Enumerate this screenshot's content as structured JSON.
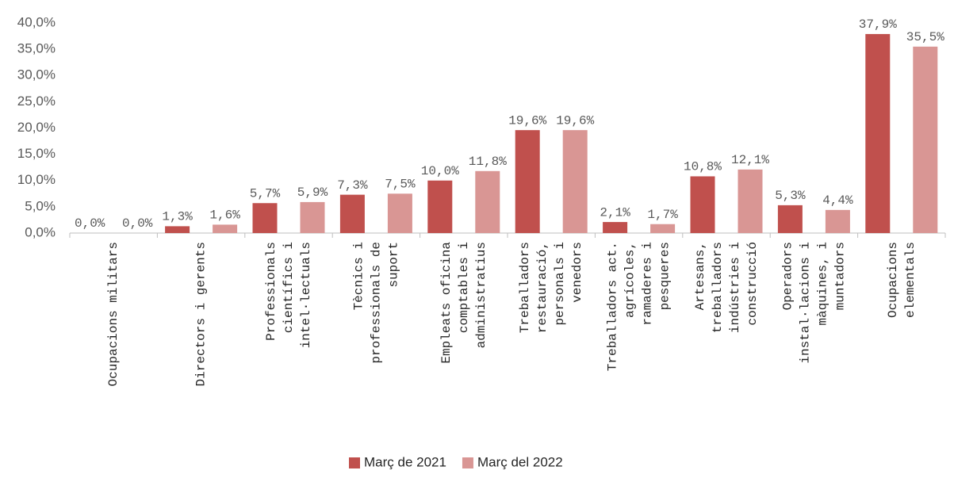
{
  "chart_data": {
    "type": "bar",
    "categories": [
      "Ocupacions militars",
      "Directors i gerents",
      "Professionals\ncientífics i\nintel·lectuals",
      "Tècnics i\nprofessionals de\nsuport",
      "Empleats oficina\ncomptables i\nadministratius",
      "Treballadors\nrestauració,\npersonals i\nvenedors",
      "Treballadors act.\nagrícoles,\nramaderes i\npesqueres",
      "Artesans,\ntreballadors\nindústries i\nconstrucció",
      "Operadors\ninstal·lacions i\nmàquines, i\nmuntadors",
      "Ocupacions\nelementals"
    ],
    "series": [
      {
        "name": "Març de 2021",
        "color": "#c0504d",
        "values": [
          0.0,
          1.3,
          5.7,
          7.3,
          10.0,
          19.6,
          2.1,
          10.8,
          5.3,
          37.9
        ],
        "value_labels": [
          "0,0%",
          "1,3%",
          "5,7%",
          "7,3%",
          "10,0%",
          "19,6%",
          "2,1%",
          "10,8%",
          "5,3%",
          "37,9%"
        ]
      },
      {
        "name": "Març del 2022",
        "color": "#d99694",
        "values": [
          0.0,
          1.6,
          5.9,
          7.5,
          11.8,
          19.6,
          1.7,
          12.1,
          4.4,
          35.5
        ],
        "value_labels": [
          "0,0%",
          "1,6%",
          "5,9%",
          "7,5%",
          "11,8%",
          "19,6%",
          "1,7%",
          "12,1%",
          "4,4%",
          "35,5%"
        ]
      }
    ],
    "ylim": [
      0,
      40
    ],
    "yticks": [
      {
        "value": 0,
        "label": "0,0%"
      },
      {
        "value": 5,
        "label": "5,0%"
      },
      {
        "value": 10,
        "label": "10,0%"
      },
      {
        "value": 15,
        "label": "15,0%"
      },
      {
        "value": 20,
        "label": "20,0%"
      },
      {
        "value": 25,
        "label": "25,0%"
      },
      {
        "value": 30,
        "label": "30,0%"
      },
      {
        "value": 35,
        "label": "35,0%"
      },
      {
        "value": 40,
        "label": "40,0%"
      }
    ],
    "legend": "bottom"
  }
}
